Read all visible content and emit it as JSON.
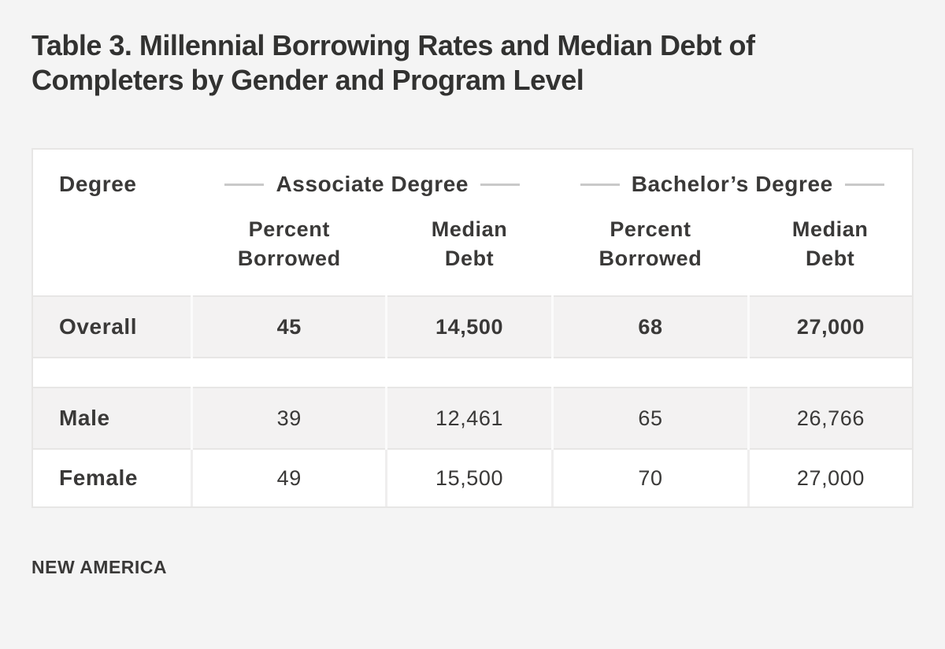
{
  "page": {
    "title_display": "Table 3. Millennial Borrowing Rates and Median Debt of\nCompleters by Gender and Program Level",
    "footer_brand": "NEW AMERICA"
  },
  "table": {
    "corner_header": "Degree",
    "group_headers": [
      "Associate Degree",
      "Bachelor’s Degree"
    ],
    "sub_headers": [
      "Percent\nBorrowed",
      "Median\nDebt",
      "Percent\nBorrowed",
      "Median\nDebt"
    ],
    "rows": [
      {
        "label": "Overall",
        "values": [
          "45",
          "14,500",
          "68",
          "27,000"
        ]
      },
      {
        "label": "Male",
        "values": [
          "39",
          "12,461",
          "65",
          "26,766"
        ]
      },
      {
        "label": "Female",
        "values": [
          "49",
          "15,500",
          "70",
          "27,000"
        ]
      }
    ]
  },
  "colors": {
    "page_background": "#f4f4f4",
    "card_background": "#ffffff",
    "stripe_row": "#f3f2f2",
    "border": "#e7e6e5",
    "divider_dash": "#c9c9c9",
    "text": "#3a3938"
  },
  "chart_data": {
    "type": "table",
    "title": "Table 3. Millennial Borrowing Rates and Median Debt of Completers by Gender and Program Level",
    "row_dimension": "Degree",
    "column_groups": [
      {
        "label": "Associate Degree",
        "columns": [
          "Percent Borrowed",
          "Median Debt"
        ]
      },
      {
        "label": "Bachelor’s Degree",
        "columns": [
          "Percent Borrowed",
          "Median Debt"
        ]
      }
    ],
    "rows": [
      {
        "label": "Overall",
        "associate_degree": {
          "percent_borrowed": 45,
          "median_debt": 14500
        },
        "bachelors_degree": {
          "percent_borrowed": 68,
          "median_debt": 27000
        }
      },
      {
        "label": "Male",
        "associate_degree": {
          "percent_borrowed": 39,
          "median_debt": 12461
        },
        "bachelors_degree": {
          "percent_borrowed": 65,
          "median_debt": 26766
        }
      },
      {
        "label": "Female",
        "associate_degree": {
          "percent_borrowed": 49,
          "median_debt": 15500
        },
        "bachelors_degree": {
          "percent_borrowed": 70,
          "median_debt": 27000
        }
      }
    ],
    "source_brand": "NEW AMERICA"
  }
}
